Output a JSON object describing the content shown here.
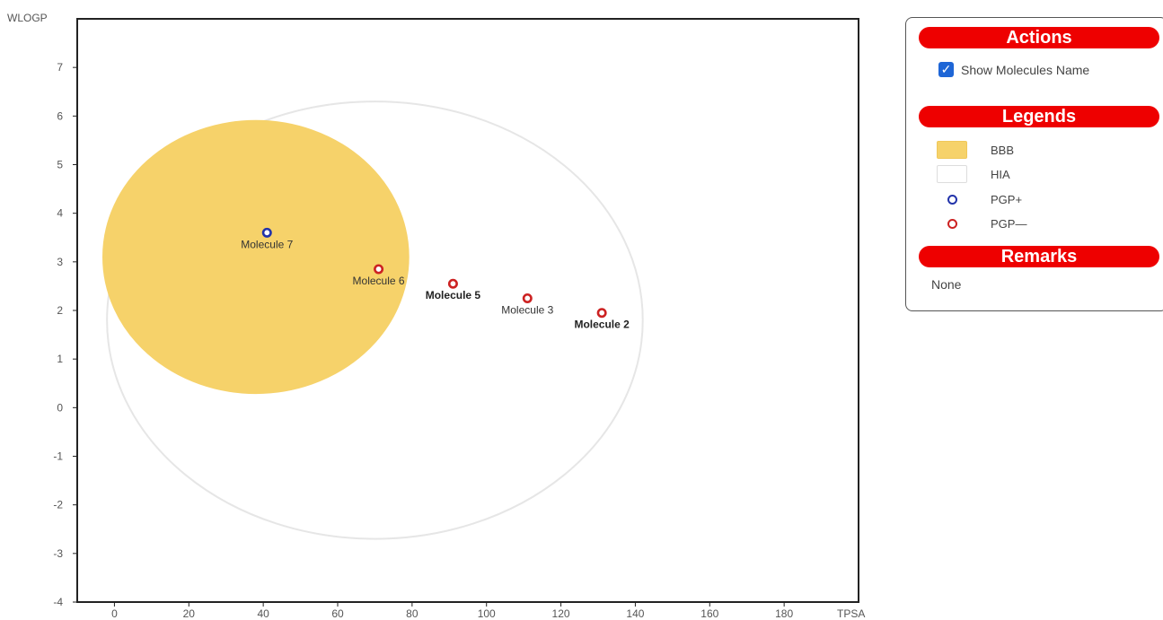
{
  "chart_data": {
    "type": "scatter",
    "xlabel": "TPSA",
    "ylabel": "WLOGP",
    "xlim": [
      -10,
      200
    ],
    "ylim": [
      -4,
      8
    ],
    "xticks": [
      0,
      20,
      40,
      60,
      80,
      100,
      120,
      140,
      160,
      180
    ],
    "yticks": [
      -4,
      -3,
      -2,
      -1,
      0,
      1,
      2,
      3,
      4,
      5,
      6,
      7
    ],
    "regions": [
      {
        "legend": "HIA",
        "color": "#ffffff",
        "stroke": "#e6e6e6",
        "cx": 70,
        "cy": 1.8,
        "rx": 72,
        "ry": 4.5
      },
      {
        "legend": "BBB",
        "color": "#f6d26a",
        "stroke": "#f6d26a",
        "cx": 38,
        "cy": 3.1,
        "rx": 41,
        "ry": 2.8
      }
    ],
    "points": [
      {
        "name": "Molecule 7",
        "x": 41,
        "y": 3.6,
        "class": "PGP+",
        "label_bold": false
      },
      {
        "name": "Molecule 6",
        "x": 71,
        "y": 2.85,
        "class": "PGP—",
        "label_bold": false
      },
      {
        "name": "Molecule 5",
        "x": 91,
        "y": 2.55,
        "class": "PGP—",
        "label_bold": true
      },
      {
        "name": "Molecule 3",
        "x": 111,
        "y": 2.25,
        "class": "PGP—",
        "label_bold": false
      },
      {
        "name": "Molecule 2",
        "x": 131,
        "y": 1.95,
        "class": "PGP—",
        "label_bold": true
      }
    ],
    "colors": {
      "PGP+": "#2233aa",
      "PGP—": "#cc2222"
    }
  },
  "panel": {
    "actions_title": "Actions",
    "show_names_label": "Show Molecules Name",
    "show_names_checked": true,
    "legends_title": "Legends",
    "legend_items": [
      {
        "label": "BBB",
        "type": "swatch",
        "color": "#f6d26a"
      },
      {
        "label": "HIA",
        "type": "swatch",
        "color": "#ffffff"
      },
      {
        "label": "PGP+",
        "type": "marker",
        "color": "#2233aa"
      },
      {
        "label": "PGP—",
        "type": "marker",
        "color": "#cc2222"
      }
    ],
    "remarks_title": "Remarks",
    "remarks_text": "None"
  }
}
